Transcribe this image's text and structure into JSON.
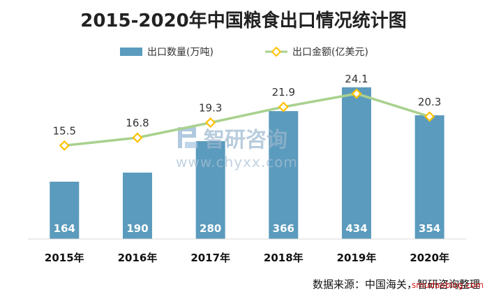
{
  "chart_data": {
    "type": "bar",
    "title": "2015-2020年中国粮食出口情况统计图",
    "categories": [
      "2015年",
      "2016年",
      "2017年",
      "2018年",
      "2019年",
      "2020年"
    ],
    "series": [
      {
        "name": "出口数量(万吨)",
        "type": "bar",
        "values": [
          164,
          190,
          280,
          366,
          434,
          354
        ],
        "color": "#5b9bbd",
        "axis": "left",
        "label_color": "#ffffff"
      },
      {
        "name": "出口金额(亿美元)",
        "type": "line",
        "values": [
          15.5,
          16.8,
          19.3,
          21.9,
          24.1,
          20.3
        ],
        "color": "#a9d18e",
        "marker_color": "#ffc000",
        "axis": "right",
        "label_color": "#333333"
      }
    ],
    "legend_position": "top-center",
    "grid": false,
    "ylim_left": [
      0,
      500
    ],
    "ylim_right": [
      0,
      35
    ],
    "axis_line_color": "#d9d9d9"
  },
  "watermark": {
    "brand": "智研咨询",
    "url": "www.chyxx.com",
    "color": "#9bb7cf"
  },
  "source": {
    "text": "数据来源：中国海关，智研咨询整理",
    "stamp": "smudaoblog.com"
  }
}
